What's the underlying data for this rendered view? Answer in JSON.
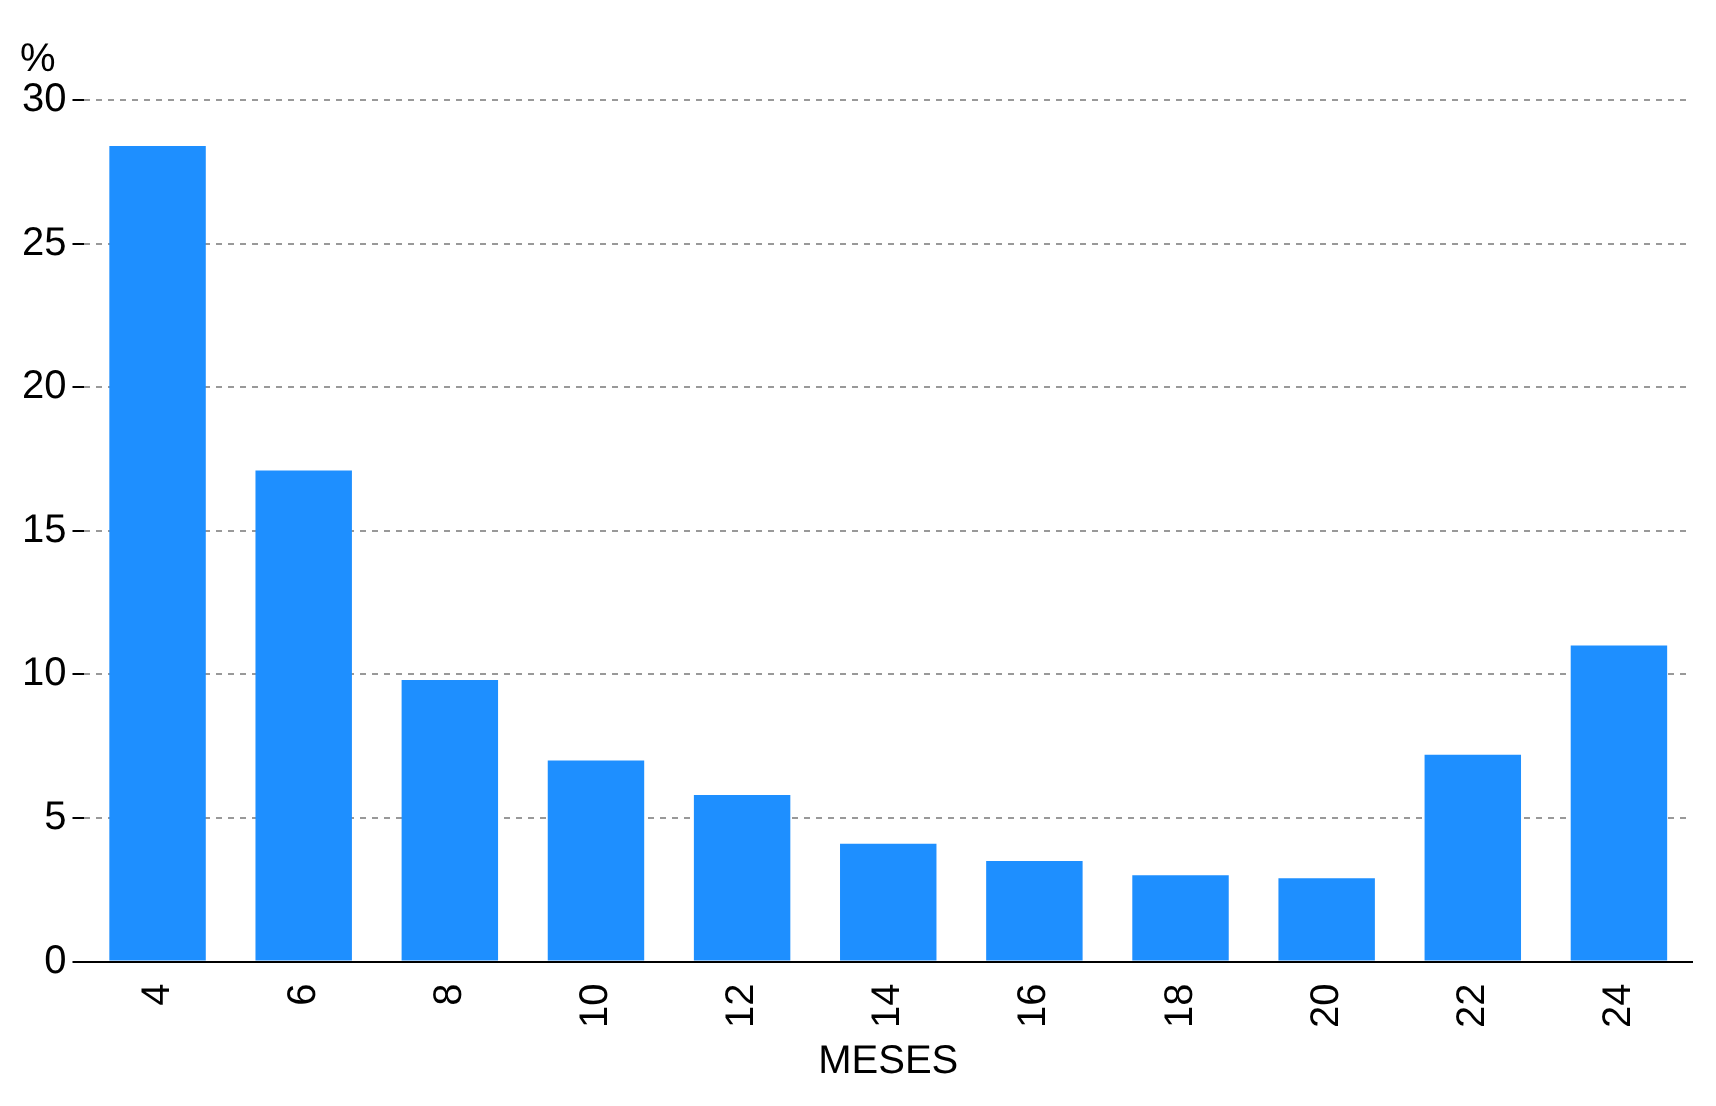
{
  "chart_data": {
    "type": "bar",
    "xlabel": "MESES",
    "ylabel": "%",
    "categories": [
      "4",
      "6",
      "8",
      "10",
      "12",
      "14",
      "16",
      "18",
      "20",
      "22",
      "24"
    ],
    "values": [
      28.4,
      17.1,
      9.8,
      7.0,
      5.8,
      4.1,
      3.5,
      3.0,
      2.9,
      7.2,
      11.0
    ],
    "color": "#1e8fff",
    "ylim": [
      0,
      30
    ],
    "yticks": [
      0,
      5,
      10,
      15,
      20,
      25,
      30
    ],
    "grid": "y",
    "legend": false
  }
}
